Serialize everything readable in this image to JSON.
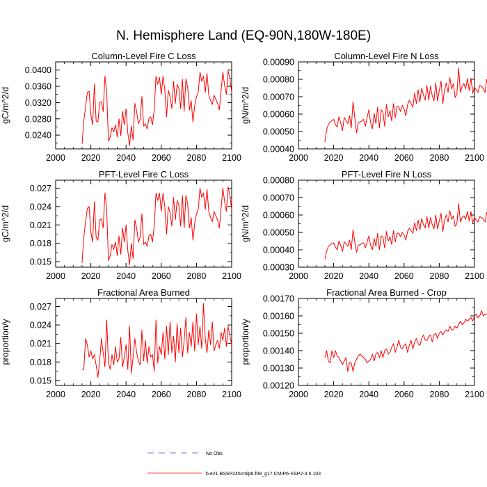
{
  "figure_title": "N. Hemisphere Land (EQ-90N,180W-180E)",
  "colors": {
    "model_line": "#ff0000",
    "obs_line": "#4b4bd0",
    "axis": "#000000"
  },
  "legend": {
    "obs_label": "No Obs",
    "model_label": "b.e21.BSSP245cmip6.f09_g17.CMIP6-SSP2-4.5.103"
  },
  "chart_data": [
    {
      "type": "line",
      "title": "Column-Level Fire C Loss",
      "ylabel": "gC/m^2/d",
      "xlim": [
        2000,
        2100
      ],
      "ylim": [
        0.0206,
        0.042
      ],
      "xticks": [
        2000,
        2020,
        2040,
        2060,
        2080,
        2100
      ],
      "yticks": [
        0.024,
        0.028,
        0.032,
        0.036,
        0.04
      ],
      "ytick_labels": [
        "0.0240",
        "0.0280",
        "0.0320",
        "0.0360",
        "0.0400"
      ],
      "x_start": 2015,
      "series": [
        {
          "name": "b.e21.BSSP245cmip6.f09_g17.CMIP6-SSP2-4.5.103",
          "values": [
            0.0218,
            0.0275,
            0.031,
            0.0345,
            0.0348,
            0.029,
            0.0265,
            0.0365,
            0.0275,
            0.0272,
            0.032,
            0.0322,
            0.0298,
            0.0385,
            0.0345,
            0.0225,
            0.0235,
            0.0258,
            0.0248,
            0.0265,
            0.0235,
            0.028,
            0.0238,
            0.0298,
            0.0265,
            0.0305,
            0.0245,
            0.0214,
            0.0262,
            0.0228,
            0.0318,
            0.0298,
            0.0268,
            0.0278,
            0.0335,
            0.0262,
            0.0268,
            0.0255,
            0.0282,
            0.0285,
            0.0265,
            0.0302,
            0.0385,
            0.0365,
            0.0382,
            0.034,
            0.0385,
            0.0352,
            0.0285,
            0.035,
            0.0335,
            0.0305,
            0.0372,
            0.0318,
            0.0365,
            0.0355,
            0.0305,
            0.0378,
            0.0298,
            0.0378,
            0.0358,
            0.0302,
            0.0325,
            0.0272,
            0.0312,
            0.0335,
            0.0345,
            0.0395,
            0.0372,
            0.0385,
            0.0345,
            0.0392,
            0.0338,
            0.0325,
            0.0315,
            0.0338,
            0.0328,
            0.0318,
            0.0302,
            0.035,
            0.0395,
            0.0362,
            0.034,
            0.0398,
            0.0378,
            0.0345
          ]
        }
      ]
    },
    {
      "type": "line",
      "title": "Column-Level Fire N Loss",
      "ylabel": "gN/m^2/d",
      "xlim": [
        2000,
        2100
      ],
      "ylim": [
        0.0004,
        0.0009
      ],
      "xticks": [
        2000,
        2020,
        2040,
        2060,
        2080,
        2100
      ],
      "yticks": [
        0.0004,
        0.0005,
        0.0006,
        0.0007,
        0.0008,
        0.0009
      ],
      "ytick_labels": [
        "0.00040",
        "0.00050",
        "0.00060",
        "0.00070",
        "0.00080",
        "0.00090"
      ],
      "x_start": 2015,
      "series": [
        {
          "name": "b.e21.BSSP245cmip6.f09_g17.CMIP6-SSP2-4.5.103",
          "values": [
            0.00044,
            0.00051,
            0.00054,
            0.000555,
            0.000562,
            0.00057,
            0.00054,
            0.000525,
            0.000585,
            0.00055,
            0.000505,
            0.00058,
            0.000565,
            0.000545,
            0.00059,
            0.00052,
            0.00067,
            0.00058,
            0.000492,
            0.00055,
            0.000555,
            0.00056,
            0.00057,
            0.00053,
            0.00058,
            0.000625,
            0.00055,
            0.000515,
            0.000605,
            0.000545,
            0.00064,
            0.00052,
            0.000625,
            0.00061,
            0.00053,
            0.000655,
            0.000585,
            0.00062,
            0.00056,
            0.00066,
            0.00058,
            0.000645,
            0.00064,
            0.000615,
            0.00065,
            0.00063,
            0.00059,
            0.000655,
            0.00068,
            0.00066,
            0.00064,
            0.00072,
            0.00066,
            0.00074,
            0.00067,
            0.00075,
            0.00071,
            0.00068,
            0.000765,
            0.00068,
            0.00076,
            0.000705,
            0.000675,
            0.00078,
            0.000675,
            0.000735,
            0.00079,
            0.00066,
            0.00074,
            0.00078,
            0.000725,
            0.00081,
            0.000745,
            0.000775,
            0.000695,
            0.000715,
            0.000865,
            0.000725,
            0.00076,
            0.000775,
            0.000745,
            0.000805,
            0.000735,
            0.000805,
            0.00072,
            0.000755,
            0.00074,
            0.000725,
            0.000765,
            0.00076,
            0.000745,
            0.000725,
            0.0008,
            0.000745,
            0.000795,
            0.000765,
            0.00082,
            0.00085,
            0.000765,
            0.00087
          ]
        }
      ]
    },
    {
      "type": "line",
      "title": "PFT-Level Fire C Loss",
      "ylabel": "gC/m^2/d",
      "xlim": [
        2000,
        2100
      ],
      "ylim": [
        0.0141,
        0.0283
      ],
      "xticks": [
        2000,
        2020,
        2040,
        2060,
        2080,
        2100
      ],
      "yticks": [
        0.015,
        0.018,
        0.021,
        0.024,
        0.027
      ],
      "ytick_labels": [
        "0.015",
        "0.018",
        "0.021",
        "0.024",
        "0.027"
      ],
      "x_start": 2015,
      "series": [
        {
          "name": "b.e21.BSSP245cmip6.f09_g17.CMIP6-SSP2-4.5.103",
          "values": [
            0.0148,
            0.019,
            0.0215,
            0.0237,
            0.024,
            0.0198,
            0.0182,
            0.0248,
            0.019,
            0.0185,
            0.0218,
            0.022,
            0.0205,
            0.0262,
            0.0235,
            0.0152,
            0.016,
            0.0178,
            0.017,
            0.0182,
            0.016,
            0.0192,
            0.0162,
            0.0205,
            0.0182,
            0.021,
            0.0168,
            0.0145,
            0.018,
            0.0155,
            0.0218,
            0.0205,
            0.0182,
            0.019,
            0.0228,
            0.0178,
            0.0182,
            0.0175,
            0.0192,
            0.0195,
            0.0182,
            0.0208,
            0.0262,
            0.025,
            0.0262,
            0.0232,
            0.0262,
            0.024,
            0.0195,
            0.024,
            0.023,
            0.0208,
            0.0255,
            0.0218,
            0.025,
            0.0242,
            0.0208,
            0.0258,
            0.0205,
            0.0258,
            0.0245,
            0.0205,
            0.0222,
            0.0185,
            0.0212,
            0.0228,
            0.0235,
            0.027,
            0.0255,
            0.0262,
            0.0235,
            0.0268,
            0.0232,
            0.0222,
            0.0215,
            0.0232,
            0.0225,
            0.0218,
            0.0205,
            0.0238,
            0.027,
            0.0248,
            0.0232,
            0.0272,
            0.0258,
            0.0235
          ]
        }
      ]
    },
    {
      "type": "line",
      "title": "PFT-Level Fire N Loss",
      "ylabel": "gN/m^2/d",
      "xlim": [
        2000,
        2100
      ],
      "ylim": [
        0.0003,
        0.0008
      ],
      "xticks": [
        2000,
        2020,
        2040,
        2060,
        2080,
        2100
      ],
      "yticks": [
        0.0003,
        0.0004,
        0.0005,
        0.0006,
        0.0007,
        0.0008
      ],
      "ytick_labels": [
        "0.00030",
        "0.00040",
        "0.00050",
        "0.00060",
        "0.00070",
        "0.00080"
      ],
      "x_start": 2015,
      "series": [
        {
          "name": "b.e21.BSSP245cmip6.f09_g17.CMIP6-SSP2-4.5.103",
          "values": [
            0.000345,
            0.00039,
            0.00042,
            0.000428,
            0.000435,
            0.00044,
            0.000415,
            0.0004,
            0.00045,
            0.000425,
            0.00039,
            0.000445,
            0.000435,
            0.00042,
            0.000455,
            0.0004,
            0.000515,
            0.000445,
            0.000385,
            0.000425,
            0.00043,
            0.000435,
            0.00044,
            0.00041,
            0.000445,
            0.00048,
            0.000425,
            0.0004,
            0.000465,
            0.00042,
            0.000495,
            0.0004,
            0.00048,
            0.00047,
            0.00041,
            0.000505,
            0.00045,
            0.000475,
            0.00043,
            0.00051,
            0.000445,
            0.000495,
            0.000495,
            0.000475,
            0.0005,
            0.000485,
            0.000455,
            0.000505,
            0.000525,
            0.00051,
            0.000495,
            0.000555,
            0.00051,
            0.00057,
            0.000515,
            0.00058,
            0.000545,
            0.000525,
            0.00059,
            0.000525,
            0.000585,
            0.000545,
            0.00052,
            0.0006,
            0.00052,
            0.000565,
            0.00061,
            0.000505,
            0.00057,
            0.0006,
            0.00056,
            0.000625,
            0.000575,
            0.000595,
            0.000535,
            0.00055,
            0.000665,
            0.00056,
            0.000585,
            0.000595,
            0.000575,
            0.00062,
            0.000565,
            0.00062,
            0.000555,
            0.000585,
            0.00057,
            0.00056,
            0.00059,
            0.000585,
            0.000575,
            0.00056,
            0.000615,
            0.000575,
            0.000615,
            0.00059,
            0.00063,
            0.000655,
            0.00059,
            0.00067
          ]
        }
      ]
    },
    {
      "type": "line",
      "title": "Fractional Area Burned",
      "ylabel": "proportion/y",
      "xlim": [
        2000,
        2100
      ],
      "ylim": [
        0.0142,
        0.0283
      ],
      "xticks": [
        2000,
        2020,
        2040,
        2060,
        2080,
        2100
      ],
      "yticks": [
        0.015,
        0.018,
        0.021,
        0.024,
        0.027
      ],
      "ytick_labels": [
        "0.015",
        "0.018",
        "0.021",
        "0.024",
        "0.027"
      ],
      "x_start": 2015,
      "series": [
        {
          "name": "b.e21.BSSP245cmip6.f09_g17.CMIP6-SSP2-4.5.103",
          "values": [
            0.0168,
            0.0168,
            0.0218,
            0.0208,
            0.0188,
            0.0198,
            0.0185,
            0.0192,
            0.0175,
            0.0155,
            0.0182,
            0.0218,
            0.0195,
            0.0172,
            0.0248,
            0.0178,
            0.0168,
            0.0192,
            0.0175,
            0.0205,
            0.018,
            0.0185,
            0.022,
            0.0172,
            0.0188,
            0.0208,
            0.0168,
            0.0238,
            0.0162,
            0.0188,
            0.0218,
            0.0195,
            0.0182,
            0.0175,
            0.0232,
            0.0182,
            0.0215,
            0.0178,
            0.0205,
            0.0188,
            0.0192,
            0.0165,
            0.0248,
            0.0178,
            0.0205,
            0.0192,
            0.0228,
            0.0185,
            0.0238,
            0.0192,
            0.0245,
            0.0195,
            0.0222,
            0.018,
            0.0242,
            0.0195,
            0.0235,
            0.0188,
            0.0215,
            0.0252,
            0.0195,
            0.0228,
            0.0205,
            0.0245,
            0.0198,
            0.0258,
            0.0208,
            0.0238,
            0.0202,
            0.0275,
            0.0218,
            0.0195,
            0.0232,
            0.0208,
            0.0245,
            0.0198,
            0.0208,
            0.0215,
            0.0202,
            0.0228,
            0.0215,
            0.0235,
            0.0205,
            0.0238,
            0.0222,
            0.0208
          ]
        }
      ]
    },
    {
      "type": "line",
      "title": "Fractional Area Burned - Crop",
      "ylabel": "proportion/y",
      "xlim": [
        2000,
        2100
      ],
      "ylim": [
        0.0012,
        0.0017
      ],
      "xticks": [
        2000,
        2020,
        2040,
        2060,
        2080,
        2100
      ],
      "yticks": [
        0.0012,
        0.0013,
        0.0014,
        0.0015,
        0.0016,
        0.0017
      ],
      "ytick_labels": [
        "0.00120",
        "0.00130",
        "0.00140",
        "0.00150",
        "0.00160",
        "0.00170"
      ],
      "x_start": 2015,
      "series": [
        {
          "name": "b.e21.BSSP245cmip6.f09_g17.CMIP6-SSP2-4.5.103",
          "values": [
            0.00136,
            0.0014,
            0.00134,
            0.00133,
            0.0014,
            0.00136,
            0.0014,
            0.00137,
            0.00136,
            0.00134,
            0.00132,
            0.00134,
            0.00136,
            0.00128,
            0.00133,
            0.00133,
            0.00128,
            0.00133,
            0.00135,
            0.00137,
            0.00138,
            0.00137,
            0.00136,
            0.00135,
            0.00133,
            0.00134,
            0.00135,
            0.00138,
            0.00134,
            0.00138,
            0.00139,
            0.00136,
            0.0014,
            0.00136,
            0.0014,
            0.00141,
            0.00138,
            0.00139,
            0.00142,
            0.00144,
            0.00139,
            0.00142,
            0.00146,
            0.00142,
            0.00141,
            0.00143,
            0.00144,
            0.00139,
            0.00143,
            0.00146,
            0.00141,
            0.00145,
            0.00147,
            0.00144,
            0.00143,
            0.00147,
            0.00149,
            0.00146,
            0.00146,
            0.00148,
            0.00149,
            0.00145,
            0.00149,
            0.0015,
            0.00147,
            0.0015,
            0.00151,
            0.00149,
            0.00151,
            0.00152,
            0.00151,
            0.00154,
            0.00152,
            0.00152,
            0.00154,
            0.00153,
            0.00155,
            0.00157,
            0.00155,
            0.00156,
            0.00158,
            0.00157,
            0.00158,
            0.00159,
            0.00157,
            0.0016,
            0.00161,
            0.00159,
            0.0016,
            0.00163,
            0.0016,
            0.00161,
            0.00161,
            0.00163,
            0.00161,
            0.00162,
            0.00163
          ]
        }
      ]
    }
  ]
}
